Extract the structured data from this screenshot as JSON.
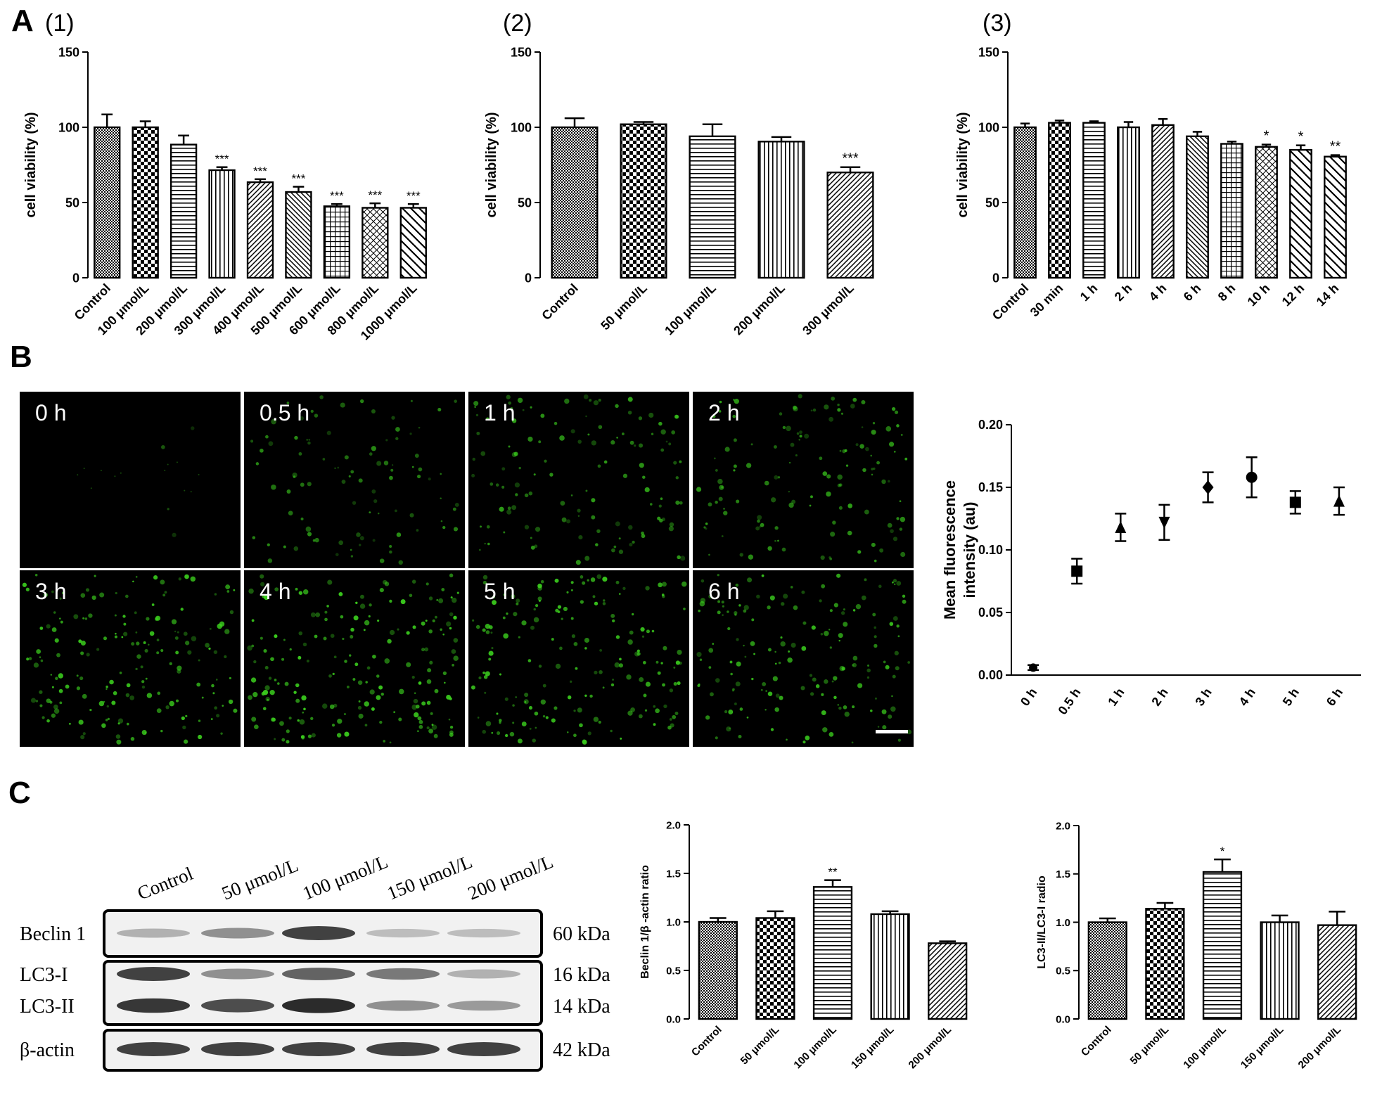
{
  "panel_labels": {
    "A": "A",
    "B": "B",
    "C": "C"
  },
  "colors": {
    "microscopy_bg": "#000000",
    "cell_fluor": "#3cd21e",
    "bar_fill": "#ffffff",
    "ink": "#000000"
  },
  "chart_data": [
    {
      "id": "A1",
      "type": "bar",
      "panel_title": "(1)",
      "ylabel": "cell viability (%)",
      "ylim": [
        0,
        150
      ],
      "yticks": [
        0,
        50,
        100,
        150
      ],
      "categories": [
        "Control",
        "100 μmol/L",
        "200 μmol/L",
        "300 μmol/L",
        "400 μmol/L",
        "500 μmol/L",
        "600 μmol/L",
        "800 μmol/L",
        "1000 μmol/L"
      ],
      "values": [
        100,
        100,
        88.5,
        71.5,
        63.5,
        57,
        47.5,
        46.5,
        46.5
      ],
      "errors": [
        8.5,
        4,
        6,
        2,
        2,
        3.5,
        1.5,
        3,
        2.5
      ],
      "annotations": [
        "",
        "",
        "",
        "***",
        "***",
        "***",
        "***",
        "***",
        "***"
      ],
      "patterns": [
        "fine-check",
        "checker",
        "hlines",
        "vlines",
        "diag-bl",
        "diag-br",
        "grid",
        "diag-cross",
        "diag-br-wide"
      ]
    },
    {
      "id": "A2",
      "type": "bar",
      "panel_title": "(2)",
      "ylabel": "cell viability (%)",
      "ylim": [
        0,
        150
      ],
      "yticks": [
        0,
        50,
        100,
        150
      ],
      "categories": [
        "Control",
        "50 μmol/L",
        "100 μmol/L",
        "200 μmol/L",
        "300 μmol/L"
      ],
      "values": [
        100,
        102,
        94,
        90.5,
        70
      ],
      "errors": [
        6,
        1.5,
        8,
        3,
        3.5
      ],
      "annotations": [
        "",
        "",
        "",
        "",
        "***"
      ],
      "patterns": [
        "fine-check",
        "checker",
        "hlines",
        "vlines",
        "diag-bl"
      ]
    },
    {
      "id": "A3",
      "type": "bar",
      "panel_title": "(3)",
      "ylabel": "cell viability (%)",
      "ylim": [
        0,
        150
      ],
      "yticks": [
        0,
        50,
        100,
        150
      ],
      "categories": [
        "Control",
        "30 min",
        "1 h",
        "2 h",
        "4 h",
        "6 h",
        "8 h",
        "10 h",
        "12 h",
        "14 h"
      ],
      "values": [
        100,
        103,
        103,
        100,
        101.5,
        94,
        89,
        87,
        85,
        80.5
      ],
      "errors": [
        2.5,
        1.5,
        1,
        3.5,
        4,
        3,
        1.5,
        1.5,
        3,
        1
      ],
      "annotations": [
        "",
        "",
        "",
        "",
        "",
        "",
        "",
        "*",
        "*",
        "**"
      ],
      "patterns": [
        "fine-check",
        "checker",
        "hlines",
        "vlines",
        "diag-bl",
        "diag-br",
        "grid",
        "diag-cross",
        "diag-br-wide",
        "diag-br-wide"
      ]
    },
    {
      "id": "B",
      "type": "scatter",
      "ylabel": "Mean fluorescence intensity (au)",
      "ylim": [
        0,
        0.2
      ],
      "yticks": [
        "0.00",
        "0.05",
        "0.10",
        "0.15",
        "0.20"
      ],
      "categories": [
        "0 h",
        "0.5 h",
        "1 h",
        "2 h",
        "3 h",
        "4 h",
        "5 h",
        "6 h"
      ],
      "values": [
        0.006,
        0.083,
        0.118,
        0.122,
        0.15,
        0.158,
        0.138,
        0.139
      ],
      "errors": [
        0.002,
        0.01,
        0.011,
        0.014,
        0.012,
        0.016,
        0.009,
        0.011
      ],
      "markers": [
        "circle",
        "square",
        "triangle-up",
        "triangle-down",
        "diamond",
        "circle",
        "square",
        "triangle-up"
      ]
    },
    {
      "id": "C1",
      "type": "bar",
      "ylabel": "Beclin 1/β -actin ratio",
      "ylim": [
        0,
        2.0
      ],
      "yticks": [
        "0.0",
        "0.5",
        "1.0",
        "1.5",
        "2.0"
      ],
      "categories": [
        "Control",
        "50 μmol/L",
        "100 μmol/L",
        "150 μmol/L",
        "200 μmol/L"
      ],
      "values": [
        1.0,
        1.04,
        1.36,
        1.08,
        0.78
      ],
      "errors": [
        0.04,
        0.07,
        0.07,
        0.03,
        0.02
      ],
      "annotations": [
        "",
        "",
        "**",
        "",
        ""
      ],
      "patterns": [
        "fine-check",
        "checker",
        "hlines",
        "vlines",
        "diag-bl"
      ]
    },
    {
      "id": "C2",
      "type": "bar",
      "ylabel": "LC3-II/LC3-I radio",
      "ylim": [
        0,
        2.0
      ],
      "yticks": [
        "0.0",
        "0.5",
        "1.0",
        "1.5",
        "2.0"
      ],
      "categories": [
        "Control",
        "50 μmol/L",
        "100 μmol/L",
        "150 μmol/L",
        "200 μmol/L"
      ],
      "values": [
        1.0,
        1.14,
        1.52,
        1.0,
        0.97
      ],
      "errors": [
        0.04,
        0.06,
        0.13,
        0.07,
        0.14
      ],
      "annotations": [
        "",
        "",
        "*",
        "",
        ""
      ],
      "patterns": [
        "fine-check",
        "checker",
        "hlines",
        "vlines",
        "diag-bl"
      ]
    }
  ],
  "microscopy": {
    "timepoints": [
      "0 h",
      "0.5 h",
      "1 h",
      "2 h",
      "3 h",
      "4 h",
      "5 h",
      "6 h"
    ],
    "fluorescence_level": [
      0.02,
      0.45,
      0.6,
      0.62,
      0.85,
      0.92,
      0.85,
      0.78
    ],
    "has_scale_bar": true
  },
  "western_blot": {
    "lanes": [
      "Control",
      "50 μmol/L",
      "100 μmol/L",
      "150 μmol/L",
      "200 μmol/L"
    ],
    "rows": [
      {
        "label": "Beclin 1",
        "kda": "60 kDa",
        "intensity": [
          0.35,
          0.5,
          0.85,
          0.3,
          0.3
        ]
      },
      {
        "label": "LC3-I",
        "kda": "16 kDa",
        "intensity": [
          0.85,
          0.5,
          0.7,
          0.6,
          0.35
        ]
      },
      {
        "label": "LC3-II",
        "kda": "14 kDa",
        "intensity": [
          0.9,
          0.8,
          0.95,
          0.5,
          0.45
        ]
      },
      {
        "label": "β-actin",
        "kda": "42 kDa",
        "intensity": [
          0.85,
          0.85,
          0.85,
          0.85,
          0.85
        ]
      }
    ]
  }
}
